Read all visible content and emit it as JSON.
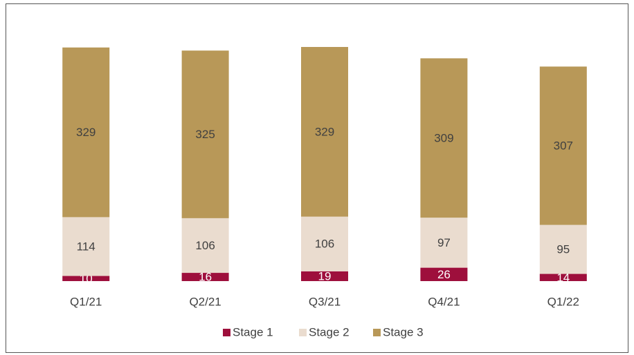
{
  "chart_data": {
    "type": "stacked_bar",
    "categories": [
      "Q1/21",
      "Q2/21",
      "Q3/21",
      "Q4/21",
      "Q1/22"
    ],
    "series": [
      {
        "name": "Stage 1",
        "color": "#9e0f3c",
        "values": [
          10,
          16,
          19,
          26,
          14
        ]
      },
      {
        "name": "Stage 2",
        "color": "#eadccf",
        "values": [
          114,
          106,
          106,
          97,
          95
        ]
      },
      {
        "name": "Stage 3",
        "color": "#b89858",
        "values": [
          329,
          325,
          329,
          309,
          307
        ]
      }
    ],
    "legend": "bottom"
  }
}
